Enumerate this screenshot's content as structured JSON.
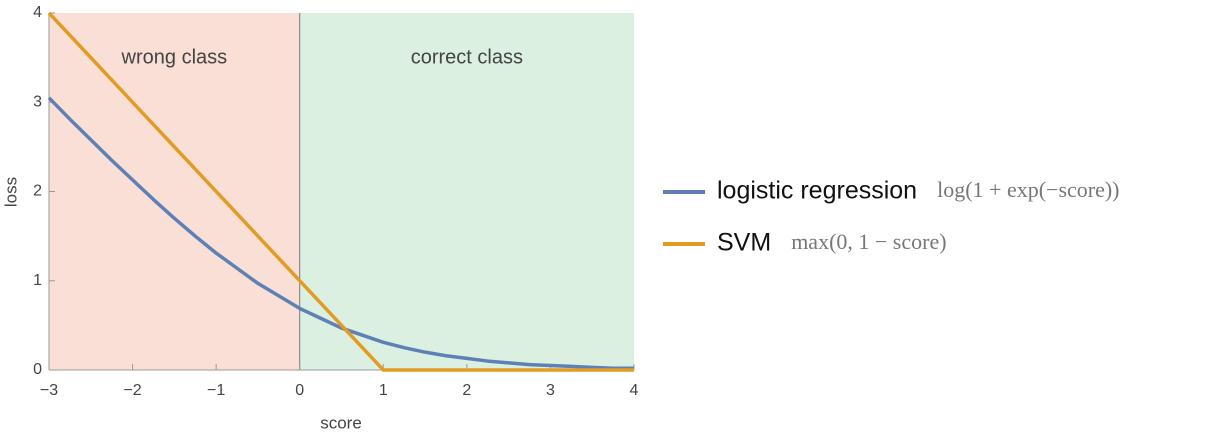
{
  "chart_data": {
    "type": "line",
    "xlabel": "score",
    "ylabel": "loss",
    "xlim": [
      -3,
      4
    ],
    "ylim": [
      0,
      4
    ],
    "xticks": [
      {
        "value": -3,
        "label": "−3"
      },
      {
        "value": -2,
        "label": "−2"
      },
      {
        "value": -1,
        "label": "−1"
      },
      0,
      1,
      2,
      3,
      4
    ],
    "yticks": [
      0,
      1,
      2,
      3,
      4
    ],
    "regions": [
      {
        "label": "wrong class",
        "from": -3,
        "to": 0,
        "color": "#fadfd6"
      },
      {
        "label": "correct class",
        "from": 0,
        "to": 4,
        "color": "#dcf0e2"
      }
    ],
    "legend": "right",
    "series": [
      {
        "name": "logistic regression",
        "formula": "log(1 + exp(−score))",
        "color": "#5e81b5",
        "x": [
          -3,
          -2.75,
          -2.5,
          -2.25,
          -2,
          -1.75,
          -1.5,
          -1.25,
          -1,
          -0.75,
          -0.5,
          -0.25,
          0,
          0.25,
          0.5,
          0.75,
          1,
          1.25,
          1.5,
          1.75,
          2,
          2.25,
          2.5,
          2.75,
          3,
          3.25,
          3.5,
          3.75,
          4
        ],
        "values": [
          3.05,
          2.81,
          2.58,
          2.35,
          2.13,
          1.91,
          1.7,
          1.5,
          1.31,
          1.14,
          0.97,
          0.83,
          0.69,
          0.58,
          0.47,
          0.39,
          0.31,
          0.25,
          0.2,
          0.16,
          0.13,
          0.1,
          0.08,
          0.06,
          0.05,
          0.04,
          0.03,
          0.02,
          0.02
        ]
      },
      {
        "name": "SVM",
        "formula": "max(0, 1 − score)",
        "color": "#e19c24",
        "x": [
          -3,
          1,
          4
        ],
        "values": [
          4,
          0,
          0
        ]
      }
    ]
  }
}
